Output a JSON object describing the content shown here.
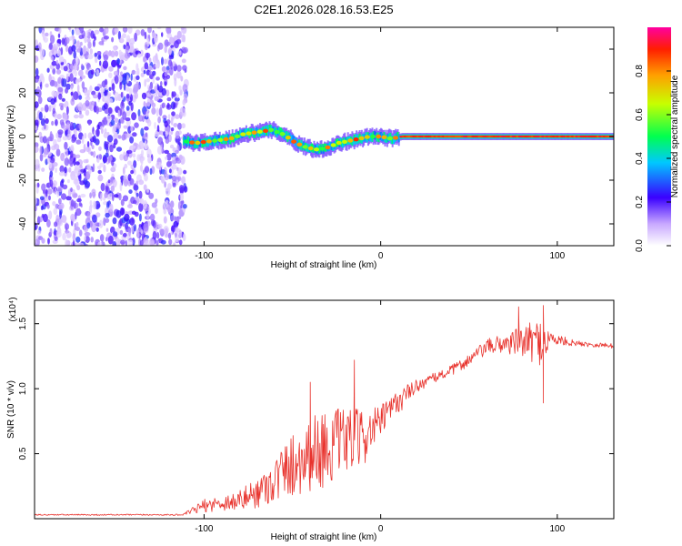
{
  "title": "C2E1.2026.028.16.53.E25",
  "chart_data": [
    {
      "type": "heatmap",
      "xlabel": "Height of straight line (km)",
      "ylabel": "Frequency (Hz)",
      "xlim": [
        -196,
        132
      ],
      "ylim": [
        -50,
        50
      ],
      "xticks": [
        -100,
        0,
        100
      ],
      "xtick_labels": [
        "-100",
        "0",
        "100"
      ],
      "yticks": [
        -40,
        -20,
        0,
        20,
        40
      ],
      "ytick_labels": [
        "-40",
        "-20",
        "0",
        "20",
        "40"
      ],
      "noise_region_x": [
        -196,
        -110
      ],
      "signal_trace": {
        "x": [
          -112,
          -105,
          -95,
          -85,
          -78,
          -70,
          -62,
          -55,
          -48,
          -42,
          -36,
          -30,
          -24,
          -18,
          -12,
          -6,
          0,
          6,
          12,
          30,
          60,
          90,
          132
        ],
        "freq": [
          -2,
          -3,
          -2,
          -1,
          1,
          2,
          3,
          1,
          -3,
          -5,
          -6,
          -5,
          -3,
          -2,
          -1,
          0,
          0,
          -1,
          0,
          0,
          0,
          0,
          0
        ]
      },
      "colorbar": {
        "label": "Normalized spectral amplitude",
        "range": [
          0,
          1
        ],
        "ticks": [
          0.0,
          0.2,
          0.4,
          0.6,
          0.8
        ],
        "tick_labels": [
          "0.0",
          "0.2",
          "0.4",
          "0.6",
          "0.8"
        ]
      }
    },
    {
      "type": "line",
      "xlabel": "Height of straight line (km)",
      "ylabel": "SNR (10 * v/v)",
      "exponent_label": "(x10⁴)",
      "xlim": [
        -196,
        132
      ],
      "ylim": [
        0,
        1.68
      ],
      "xticks": [
        -100,
        0,
        100
      ],
      "xtick_labels": [
        "-100",
        "0",
        "100"
      ],
      "yticks": [
        0.5,
        1.0,
        1.5
      ],
      "ytick_labels": [
        "0.5",
        "1.0",
        "1.5"
      ],
      "series": [
        {
          "name": "SNR",
          "color": "#e8322c",
          "x": [
            -196,
            -150,
            -112,
            -100,
            -90,
            -80,
            -70,
            -60,
            -50,
            -40,
            -30,
            -20,
            -10,
            0,
            10,
            20,
            30,
            40,
            50,
            60,
            70,
            80,
            90,
            98,
            110,
            120,
            132
          ],
          "y": [
            0.03,
            0.03,
            0.03,
            0.1,
            0.12,
            0.14,
            0.2,
            0.3,
            0.42,
            0.5,
            0.55,
            0.6,
            0.62,
            0.75,
            0.9,
            1.02,
            1.08,
            1.14,
            1.22,
            1.32,
            1.35,
            1.36,
            1.36,
            1.38,
            1.35,
            1.34,
            1.33
          ],
          "noise_amplitude": [
            0.005,
            0.005,
            0.005,
            0.05,
            0.06,
            0.08,
            0.12,
            0.18,
            0.25,
            0.3,
            0.3,
            0.25,
            0.22,
            0.12,
            0.1,
            0.05,
            0.04,
            0.04,
            0.05,
            0.06,
            0.08,
            0.12,
            0.18,
            0.05,
            0.02,
            0.02,
            0.02
          ],
          "peaks": [
            {
              "x": -40,
              "y": 1.05
            },
            {
              "x": -15,
              "y": 1.22
            },
            {
              "x": 78,
              "y": 1.63
            },
            {
              "x": 92,
              "y": 1.64
            },
            {
              "x": 92,
              "y": 0.89
            }
          ]
        }
      ]
    }
  ]
}
